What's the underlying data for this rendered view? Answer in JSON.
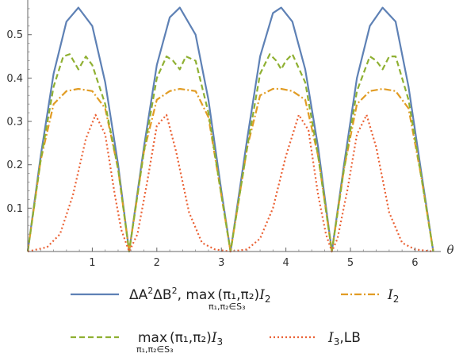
{
  "chart_data": {
    "type": "line",
    "xlabel": "θ",
    "ylabel": "",
    "xlim": [
      0,
      6.4
    ],
    "ylim": [
      0,
      0.58
    ],
    "x_ticks": [
      1,
      2,
      3,
      4,
      5,
      6
    ],
    "y_ticks": [
      0.1,
      0.2,
      0.3,
      0.4,
      0.5
    ],
    "legend_position": "bottom",
    "series": [
      {
        "name": "ΔA²ΔB², max_{π1,π2∈S3}(π1,π2)I2",
        "color": "#5E81B5",
        "dash": "solid",
        "x": [
          0,
          0.2,
          0.4,
          0.6,
          0.785,
          1.0,
          1.2,
          1.4,
          1.571,
          1.8,
          2.0,
          2.2,
          2.356,
          2.6,
          2.8,
          3.0,
          3.142,
          3.4,
          3.6,
          3.8,
          3.927,
          4.1,
          4.3,
          4.5,
          4.712,
          4.9,
          5.1,
          5.3,
          5.498,
          5.7,
          5.9,
          6.1,
          6.283
        ],
        "y": [
          0,
          0.22,
          0.41,
          0.53,
          0.5625,
          0.52,
          0.39,
          0.2,
          0,
          0.24,
          0.43,
          0.54,
          0.5625,
          0.5,
          0.35,
          0.14,
          0,
          0.26,
          0.45,
          0.55,
          0.5625,
          0.53,
          0.42,
          0.24,
          0,
          0.2,
          0.4,
          0.52,
          0.5625,
          0.53,
          0.38,
          0.18,
          0
        ]
      },
      {
        "name": "I2",
        "color": "#E19C24",
        "dash": "dashdot",
        "x": [
          0,
          0.2,
          0.4,
          0.6,
          0.785,
          1.0,
          1.2,
          1.4,
          1.571,
          1.8,
          2.0,
          2.2,
          2.356,
          2.6,
          2.8,
          3.0,
          3.142,
          3.4,
          3.6,
          3.8,
          3.927,
          4.1,
          4.3,
          4.5,
          4.712,
          4.9,
          5.1,
          5.3,
          5.498,
          5.7,
          5.9,
          6.1,
          6.283
        ],
        "y": [
          0,
          0.21,
          0.34,
          0.37,
          0.375,
          0.37,
          0.33,
          0.19,
          0,
          0.23,
          0.35,
          0.37,
          0.375,
          0.37,
          0.31,
          0.13,
          0,
          0.24,
          0.36,
          0.375,
          0.375,
          0.37,
          0.35,
          0.22,
          0,
          0.19,
          0.34,
          0.37,
          0.375,
          0.37,
          0.33,
          0.17,
          0
        ]
      },
      {
        "name": "max_{π1,π2∈S3}(π1,π2)I3",
        "color": "#8FB032",
        "dash": "dash",
        "x": [
          0,
          0.2,
          0.4,
          0.55,
          0.65,
          0.785,
          0.9,
          1.0,
          1.2,
          1.4,
          1.571,
          1.8,
          2.0,
          2.15,
          2.25,
          2.356,
          2.45,
          2.6,
          2.8,
          3.0,
          3.142,
          3.4,
          3.6,
          3.75,
          3.85,
          3.927,
          4.0,
          4.1,
          4.3,
          4.5,
          4.712,
          4.9,
          5.1,
          5.3,
          5.4,
          5.498,
          5.6,
          5.7,
          5.9,
          6.1,
          6.283
        ],
        "y": [
          0,
          0.21,
          0.38,
          0.45,
          0.455,
          0.42,
          0.45,
          0.43,
          0.34,
          0.19,
          0,
          0.23,
          0.4,
          0.45,
          0.44,
          0.42,
          0.45,
          0.44,
          0.32,
          0.13,
          0,
          0.24,
          0.41,
          0.455,
          0.44,
          0.42,
          0.44,
          0.455,
          0.39,
          0.22,
          0,
          0.19,
          0.37,
          0.45,
          0.44,
          0.42,
          0.45,
          0.45,
          0.35,
          0.17,
          0
        ]
      },
      {
        "name": "I3,LB",
        "color": "#EB6235",
        "dash": "dot",
        "x": [
          0,
          0.3,
          0.5,
          0.7,
          0.9,
          1.05,
          1.2,
          1.35,
          1.45,
          1.571,
          1.7,
          1.85,
          2.0,
          2.15,
          2.3,
          2.5,
          2.7,
          2.9,
          3.142,
          3.4,
          3.6,
          3.8,
          4.0,
          4.2,
          4.35,
          4.5,
          4.62,
          4.712,
          4.8,
          4.95,
          5.1,
          5.25,
          5.4,
          5.6,
          5.8,
          6.0,
          6.283
        ],
        "y": [
          0,
          0.01,
          0.04,
          0.13,
          0.26,
          0.315,
          0.27,
          0.13,
          0.05,
          0,
          0.04,
          0.16,
          0.29,
          0.315,
          0.23,
          0.09,
          0.02,
          0.005,
          0,
          0.005,
          0.03,
          0.1,
          0.22,
          0.315,
          0.28,
          0.13,
          0.04,
          0,
          0.03,
          0.14,
          0.27,
          0.315,
          0.24,
          0.09,
          0.02,
          0.005,
          0
        ]
      }
    ],
    "legend": {
      "item1": {
        "pre": "ΔA",
        "sup1": "2",
        "mid": "ΔB",
        "sup2": "2",
        "comma": ", ",
        "max": "max",
        "sub": "π₁,π₂∈S₃",
        "paren": "(π₁,π₂)",
        "var": "I",
        "varsub": "2"
      },
      "item2": {
        "var": "I",
        "varsub": "2"
      },
      "item3": {
        "max": "max",
        "sub": "π₁,π₂∈S₃",
        "paren": "(π₁,π₂)",
        "var": "I",
        "varsub": "3"
      },
      "item4": {
        "var": "I",
        "varsub": "3",
        "suffix": ",LB"
      }
    }
  }
}
